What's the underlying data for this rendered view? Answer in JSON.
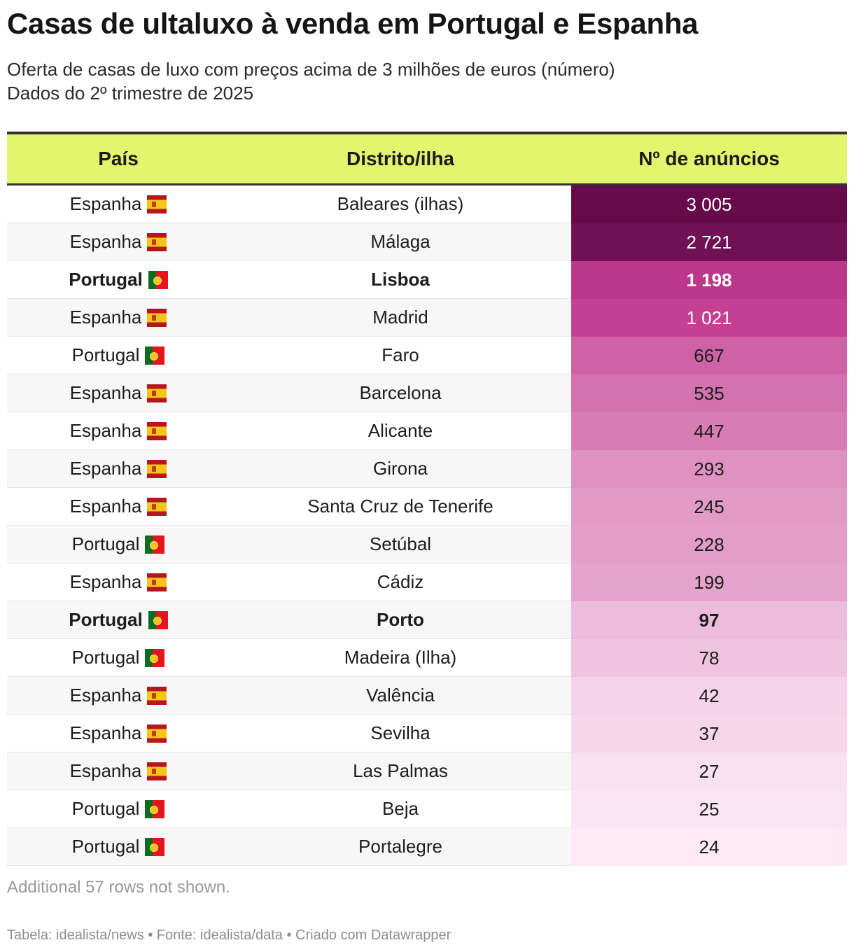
{
  "header": {
    "title": "Casas de ultaluxo à venda em Portugal e Espanha",
    "subtitle_line1": "Oferta de casas de luxo com preços acima de 3 milhões de euros (número)",
    "subtitle_line2": "Dados do 2º trimestre de 2025"
  },
  "chart_data": {
    "type": "table",
    "columns": [
      "País",
      "Distrito/ilha",
      "Nº de anúncios"
    ],
    "rows": [
      {
        "country": "Espanha",
        "flag": "spain-flag-icon",
        "district": "Baleares (ilhas)",
        "value": 3005,
        "label": "3 005",
        "bold": false
      },
      {
        "country": "Espanha",
        "flag": "spain-flag-icon",
        "district": "Málaga",
        "value": 2721,
        "label": "2 721",
        "bold": false
      },
      {
        "country": "Portugal",
        "flag": "portugal-flag-icon",
        "district": "Lisboa",
        "value": 1198,
        "label": "1 198",
        "bold": true
      },
      {
        "country": "Espanha",
        "flag": "spain-flag-icon",
        "district": "Madrid",
        "value": 1021,
        "label": "1 021",
        "bold": false
      },
      {
        "country": "Portugal",
        "flag": "portugal-flag-icon",
        "district": "Faro",
        "value": 667,
        "label": "667",
        "bold": false
      },
      {
        "country": "Espanha",
        "flag": "spain-flag-icon",
        "district": "Barcelona",
        "value": 535,
        "label": "535",
        "bold": false
      },
      {
        "country": "Espanha",
        "flag": "spain-flag-icon",
        "district": "Alicante",
        "value": 447,
        "label": "447",
        "bold": false
      },
      {
        "country": "Espanha",
        "flag": "spain-flag-icon",
        "district": "Girona",
        "value": 293,
        "label": "293",
        "bold": false
      },
      {
        "country": "Espanha",
        "flag": "spain-flag-icon",
        "district": "Santa Cruz de Tenerife",
        "value": 245,
        "label": "245",
        "bold": false
      },
      {
        "country": "Portugal",
        "flag": "portugal-flag-icon",
        "district": "Setúbal",
        "value": 228,
        "label": "228",
        "bold": false
      },
      {
        "country": "Espanha",
        "flag": "spain-flag-icon",
        "district": "Cádiz",
        "value": 199,
        "label": "199",
        "bold": false
      },
      {
        "country": "Portugal",
        "flag": "portugal-flag-icon",
        "district": "Porto",
        "value": 97,
        "label": "97",
        "bold": true
      },
      {
        "country": "Portugal",
        "flag": "portugal-flag-icon",
        "district": "Madeira (Ilha)",
        "value": 78,
        "label": "78",
        "bold": false
      },
      {
        "country": "Espanha",
        "flag": "spain-flag-icon",
        "district": "Valência",
        "value": 42,
        "label": "42",
        "bold": false
      },
      {
        "country": "Espanha",
        "flag": "spain-flag-icon",
        "district": "Sevilha",
        "value": 37,
        "label": "37",
        "bold": false
      },
      {
        "country": "Espanha",
        "flag": "spain-flag-icon",
        "district": "Las Palmas",
        "value": 27,
        "label": "27",
        "bold": false
      },
      {
        "country": "Portugal",
        "flag": "portugal-flag-icon",
        "district": "Beja",
        "value": 25,
        "label": "25",
        "bold": false
      },
      {
        "country": "Portugal",
        "flag": "portugal-flag-icon",
        "district": "Portalegre",
        "value": 24,
        "label": "24",
        "bold": false
      }
    ]
  },
  "colors": {
    "header_bg": "#e2f56c",
    "scale_dark": "#660a4c",
    "scale_mid": "#c13a8f",
    "scale_light": "#fdeaf5"
  },
  "notes": {
    "more_rows": "Additional 57 rows not shown.",
    "footer": "Tabela: idealista/news • Fonte: idealista/data • Criado com Datawrapper"
  }
}
